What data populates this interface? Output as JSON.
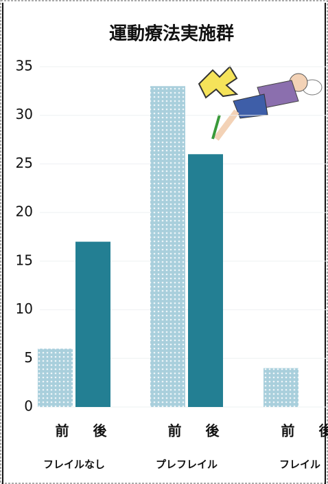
{
  "chart_data": {
    "type": "bar",
    "title": "運動療法実施群",
    "categories": [
      "フレイルなし",
      "プレフレイル",
      "フレイル"
    ],
    "series": [
      {
        "name": "前",
        "color": "#a9cfdc",
        "values": [
          6,
          33,
          4
        ]
      },
      {
        "name": "後",
        "color": "#237f93",
        "values": [
          17,
          26,
          0
        ]
      }
    ],
    "ylim": [
      0,
      35
    ],
    "yticks": [
      0,
      5,
      10,
      15,
      20,
      25,
      30,
      35
    ],
    "grid": true
  }
}
